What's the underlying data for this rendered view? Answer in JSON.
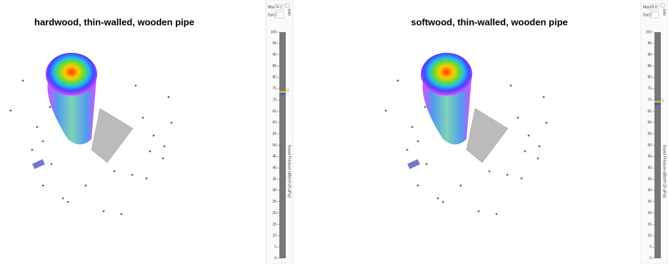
{
  "panels": [
    {
      "title": "hardwood, thin-walled, wooden pipe",
      "max_label": "Max",
      "max": 74.2,
      "auto": "auto",
      "dyn_label": "Dyn",
      "dyn": 2,
      "ticks": [
        100,
        95,
        90,
        85,
        80,
        75,
        70,
        65,
        60,
        55,
        50,
        45,
        40,
        35,
        30,
        25,
        20,
        15,
        10,
        5,
        0
      ],
      "axis_label": "Sound Pressure (dB(ref=20 µPa))"
    },
    {
      "title": "softwood, thin-walled, wooden pipe",
      "max_label": "Max",
      "max": 69.8,
      "auto": "auto",
      "dyn_label": "Dyn",
      "dyn": 2,
      "ticks": [
        100,
        95,
        90,
        85,
        80,
        75,
        70,
        65,
        60,
        55,
        50,
        45,
        40,
        35,
        30,
        25,
        20,
        15,
        10,
        5,
        0
      ],
      "axis_label": "Sound Pressure (dB(ref=20 µPa))"
    }
  ]
}
